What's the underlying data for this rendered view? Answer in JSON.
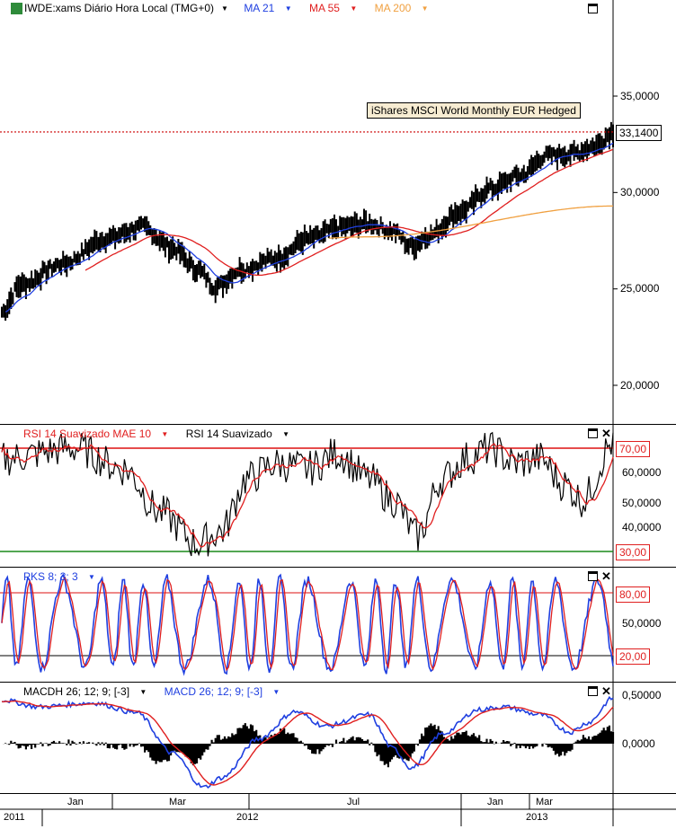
{
  "price_pane": {
    "legend": [
      {
        "label": "IWDE:xams Diário Hora Local (TMG+0)",
        "color": "#000000"
      },
      {
        "label": "MA 21",
        "color": "#1f3fe0"
      },
      {
        "label": "MA 55",
        "color": "#e01f1f"
      },
      {
        "label": "MA 200",
        "color": "#f0a040"
      }
    ],
    "app_icon": "exchange-icon",
    "y_ticks": [
      "35,0000",
      "30,0000",
      "25,0000",
      "20,0000"
    ],
    "y_tick_values": [
      35,
      30,
      25,
      20
    ],
    "last_price_label": "33,1400",
    "last_price_value": 33.14,
    "annotation": "iShares MSCI World Monthly EUR Hedged"
  },
  "rsi_pane": {
    "legend": [
      {
        "label": "RSI 14 Suavizado MAE 10",
        "color": "#e01f1f"
      },
      {
        "label": "RSI 14 Suavizado",
        "color": "#000000"
      }
    ],
    "y_ticks": [
      "70,00",
      "60,0000",
      "50,0000",
      "40,0000",
      "30,00"
    ],
    "upper_level": 70,
    "lower_level": 30
  },
  "stoch_pane": {
    "legend": [
      {
        "label": "PKS 8; 3; 3",
        "color": "#1f3fe0"
      }
    ],
    "y_ticks": [
      "80,00",
      "50,0000",
      "20,00"
    ],
    "upper_level": 80,
    "lower_level": 20
  },
  "macd_pane": {
    "legend": [
      {
        "label": "MACDH 26; 12; 9; [-3]",
        "color": "#000000"
      },
      {
        "label": "MACD 26; 12; 9; [-3]",
        "color": "#1f3fe0"
      }
    ],
    "y_ticks": [
      "0,50000",
      "0,0000"
    ]
  },
  "x_axis": {
    "months": [
      "Jan",
      "Mar",
      "Jul",
      "Jan",
      "Mar"
    ],
    "years": [
      "2011",
      "2012",
      "2013"
    ]
  },
  "colors": {
    "blue": "#1f3fe0",
    "red": "#e01f1f",
    "orange": "#f0a040",
    "green": "#1a8a1a",
    "grid": "#000000"
  }
}
